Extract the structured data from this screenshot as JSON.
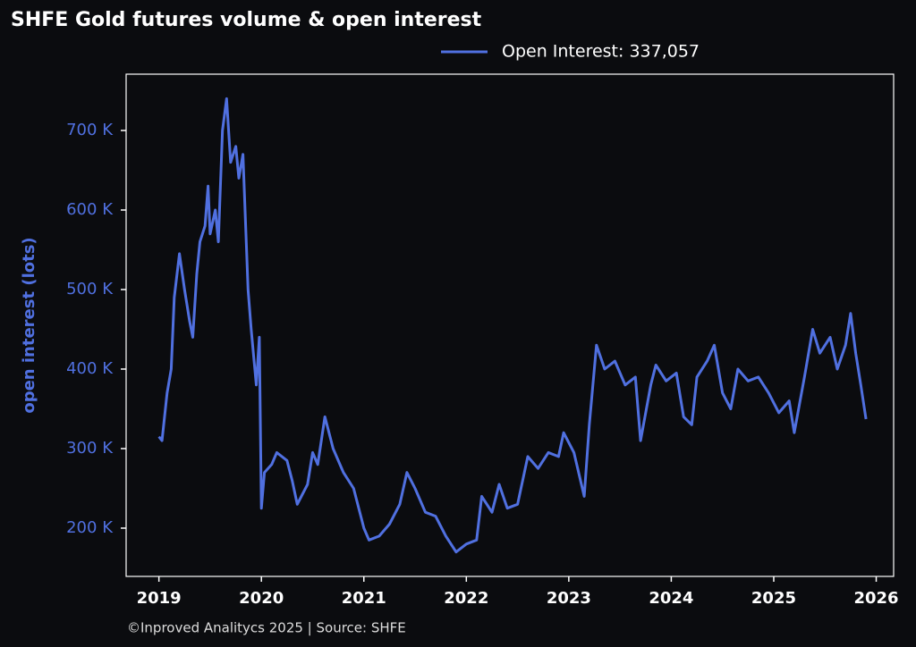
{
  "chart_data": {
    "type": "line",
    "title": "SHFE Gold futures volume & open interest",
    "ylabel": "open interest (lots)",
    "footer": "©Inproved Analitycs 2025 | Source: SHFE",
    "xlim": [
      2018.68,
      2026.17
    ],
    "xticks": [
      2019,
      2020,
      2021,
      2022,
      2023,
      2024,
      2025,
      2026
    ],
    "ylim": [
      139300,
      770800
    ],
    "yticks": [
      {
        "value": 200000,
        "label": "200 K"
      },
      {
        "value": 300000,
        "label": "300 K"
      },
      {
        "value": 400000,
        "label": "400 K"
      },
      {
        "value": 500000,
        "label": "500 K"
      },
      {
        "value": 600000,
        "label": "600 K"
      },
      {
        "value": 700000,
        "label": "700 K"
      }
    ],
    "legend": "top-right",
    "x": [
      2019.0,
      2019.03,
      2019.08,
      2019.12,
      2019.15,
      2019.2,
      2019.25,
      2019.3,
      2019.33,
      2019.37,
      2019.4,
      2019.45,
      2019.48,
      2019.5,
      2019.55,
      2019.58,
      2019.62,
      2019.66,
      2019.7,
      2019.75,
      2019.78,
      2019.82,
      2019.87,
      2019.9,
      2019.95,
      2019.98,
      2020.0,
      2020.03,
      2020.1,
      2020.15,
      2020.25,
      2020.3,
      2020.35,
      2020.45,
      2020.5,
      2020.55,
      2020.62,
      2020.7,
      2020.8,
      2020.9,
      2021.0,
      2021.05,
      2021.15,
      2021.25,
      2021.35,
      2021.42,
      2021.5,
      2021.6,
      2021.7,
      2021.8,
      2021.9,
      2022.0,
      2022.1,
      2022.15,
      2022.25,
      2022.32,
      2022.4,
      2022.5,
      2022.6,
      2022.7,
      2022.8,
      2022.9,
      2022.95,
      2023.05,
      2023.15,
      2023.2,
      2023.27,
      2023.35,
      2023.45,
      2023.55,
      2023.65,
      2023.7,
      2023.8,
      2023.85,
      2023.95,
      2024.05,
      2024.12,
      2024.2,
      2024.25,
      2024.35,
      2024.42,
      2024.5,
      2024.58,
      2024.65,
      2024.75,
      2024.85,
      2024.95,
      2025.05,
      2025.15,
      2025.2,
      2025.3,
      2025.38,
      2025.45,
      2025.55,
      2025.62,
      2025.7,
      2025.75,
      2025.8,
      2025.85,
      2025.9
    ],
    "series": [
      {
        "name": "Open Interest: 337,057",
        "color": "#5070e0",
        "values": [
          315000,
          310000,
          370000,
          400000,
          490000,
          545000,
          500000,
          460000,
          440000,
          520000,
          560000,
          580000,
          630000,
          570000,
          600000,
          560000,
          700000,
          740000,
          660000,
          680000,
          640000,
          670000,
          500000,
          450000,
          380000,
          440000,
          225000,
          270000,
          280000,
          295000,
          285000,
          260000,
          230000,
          255000,
          295000,
          280000,
          340000,
          300000,
          270000,
          250000,
          200000,
          185000,
          190000,
          205000,
          230000,
          270000,
          250000,
          220000,
          215000,
          190000,
          170000,
          180000,
          185000,
          240000,
          220000,
          255000,
          225000,
          230000,
          290000,
          275000,
          295000,
          290000,
          320000,
          295000,
          240000,
          330000,
          430000,
          400000,
          410000,
          380000,
          390000,
          310000,
          380000,
          405000,
          385000,
          395000,
          340000,
          330000,
          390000,
          410000,
          430000,
          370000,
          350000,
          400000,
          385000,
          390000,
          370000,
          345000,
          360000,
          320000,
          390000,
          450000,
          420000,
          440000,
          400000,
          430000,
          470000,
          420000,
          380000,
          337057
        ]
      }
    ]
  }
}
